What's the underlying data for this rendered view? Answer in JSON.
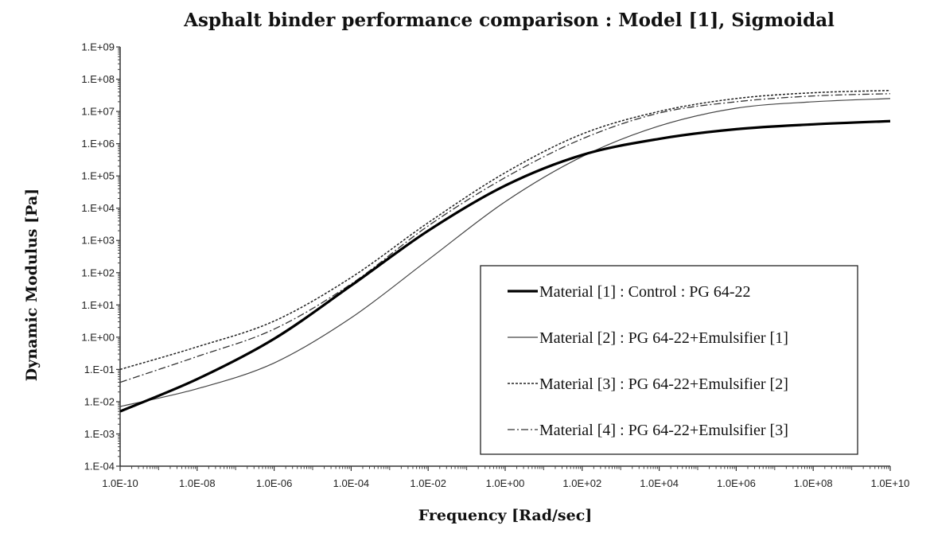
{
  "chart_data": {
    "type": "line",
    "title": "Asphalt binder performance comparison : Model [1], Sigmoidal",
    "xlabel": "Frequency [Rad/sec]",
    "ylabel": "Dynamic Modulus [Pa]",
    "x_scale": "log",
    "y_scale": "log",
    "xlim_log10": [
      -10,
      10
    ],
    "ylim_log10": [
      -4,
      9
    ],
    "x_ticks": [
      "1.0E-10",
      "1.0E-08",
      "1.0E-06",
      "1.0E-04",
      "1.0E-02",
      "1.0E+00",
      "1.0E+02",
      "1.0E+04",
      "1.0E+06",
      "1.0E+08",
      "1.0E+10"
    ],
    "y_ticks": [
      "1.E-04",
      "1.E-03",
      "1.E-02",
      "1.E-01",
      "1.E+00",
      "1.E+01",
      "1.E+02",
      "1.E+03",
      "1.E+04",
      "1.E+05",
      "1.E+06",
      "1.E+07",
      "1.E+08",
      "1.E+09"
    ],
    "grid": false,
    "legend_position": "lower-right",
    "x_log10": [
      -10,
      -8,
      -6,
      -4,
      -2,
      0,
      2,
      4,
      6,
      8,
      10
    ],
    "series": [
      {
        "name": "Material [1] : Control : PG 64-22",
        "style": "solid-thick",
        "color": "#000000",
        "y_log10": [
          -2.3,
          -1.3,
          -0.05,
          1.6,
          3.3,
          4.7,
          5.65,
          6.15,
          6.45,
          6.6,
          6.7
        ]
      },
      {
        "name": "Material [2] : PG 64-22+Emulsifier [1]",
        "style": "solid-thin",
        "color": "#444444",
        "y_log10": [
          -2.15,
          -1.6,
          -0.8,
          0.6,
          2.4,
          4.2,
          5.6,
          6.55,
          7.1,
          7.3,
          7.4
        ]
      },
      {
        "name": "Material [3] : PG 64-22+Emulsifier [2]",
        "style": "dotted",
        "color": "#222222",
        "y_log10": [
          -1.0,
          -0.3,
          0.5,
          1.85,
          3.55,
          5.1,
          6.3,
          7.0,
          7.4,
          7.58,
          7.65
        ]
      },
      {
        "name": "Material [4] : PG 64-22+Emulsifier [3]",
        "style": "dash-dot",
        "color": "#333333",
        "y_log10": [
          -1.4,
          -0.6,
          0.25,
          1.65,
          3.45,
          4.95,
          6.15,
          6.95,
          7.3,
          7.48,
          7.55
        ]
      }
    ]
  }
}
